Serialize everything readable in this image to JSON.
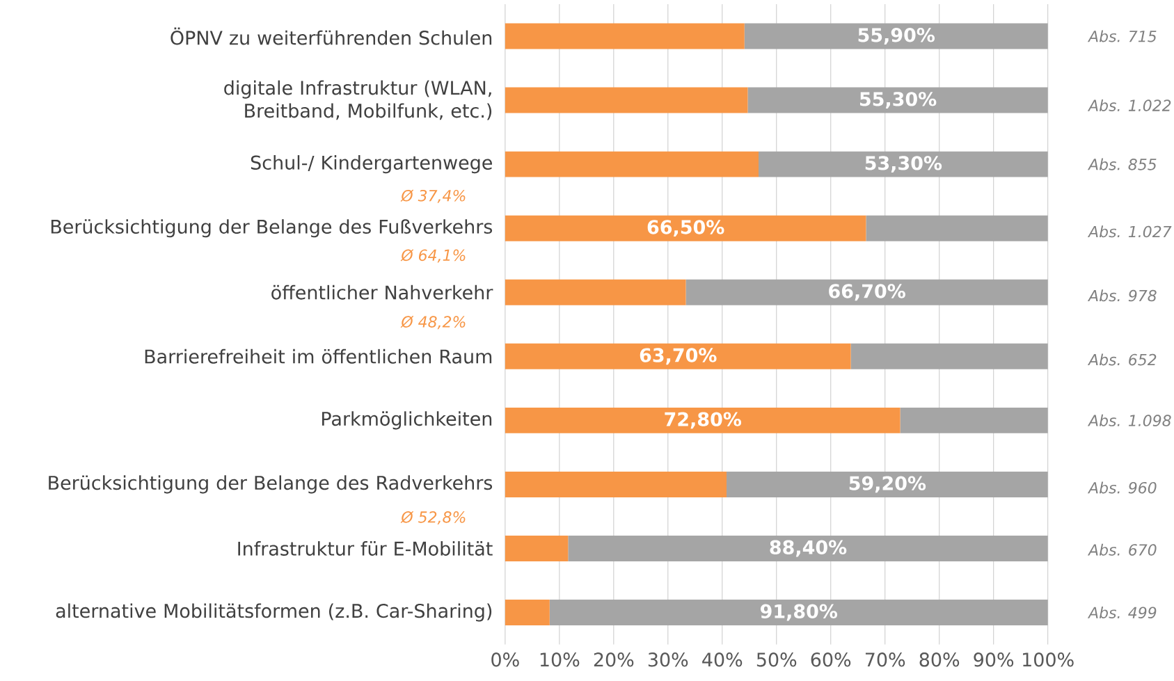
{
  "chart_data": {
    "type": "bar",
    "orientation": "horizontal",
    "stacked": true,
    "categories": [
      "ÖPNV zu weiterführenden Schulen",
      "digitale Infrastruktur (WLAN, Breitband, Mobilfunk, etc.)",
      "Schul-/ Kindergartenwege",
      "Berücksichtigung der Belange des Fußverkehrs",
      "öffentlicher Nahverkehr",
      "Barrierefreiheit im öffentlichen Raum",
      "Parkmöglichkeiten",
      "Berücksichtigung der Belange des Radverkehrs",
      "Infrastruktur für E-Mobilität",
      "alternative Mobilitätsformen (z.B. Car-Sharing)"
    ],
    "series": [
      {
        "color": "#f79646",
        "values": [
          44.1,
          44.7,
          46.7,
          66.5,
          33.3,
          63.7,
          72.8,
          40.8,
          11.6,
          8.2
        ],
        "value_labels": [
          null,
          null,
          null,
          "66,50%",
          null,
          "63,70%",
          "72,80%",
          null,
          null,
          null
        ]
      },
      {
        "color": "#a5a5a5",
        "values": [
          55.9,
          55.3,
          53.3,
          33.5,
          66.7,
          36.3,
          27.2,
          59.2,
          88.4,
          91.8
        ],
        "value_labels": [
          "55,90%",
          "55,30%",
          "53,30%",
          null,
          "66,70%",
          null,
          null,
          "59,20%",
          "88,40%",
          "91,80%"
        ]
      }
    ],
    "xlim": [
      0,
      100
    ],
    "xticks": [
      {
        "value": 0,
        "label": "0%"
      },
      {
        "value": 10,
        "label": "10%"
      },
      {
        "value": 20,
        "label": "20%"
      },
      {
        "value": 30,
        "label": "30%"
      },
      {
        "value": 40,
        "label": "40%"
      },
      {
        "value": 50,
        "label": "50%"
      },
      {
        "value": 60,
        "label": "60%"
      },
      {
        "value": 70,
        "label": "70%"
      },
      {
        "value": 80,
        "label": "80%"
      },
      {
        "value": 90,
        "label": "90%"
      },
      {
        "value": 100,
        "label": "100%"
      }
    ],
    "grid": "x",
    "annotations": [
      "Abs. 715",
      "Abs. 1.022",
      "Abs. 855",
      "Ø 37,4%",
      "Abs. 1.027",
      "Ø 64,1%",
      "Abs. 978",
      "Ø 48,2%",
      "Abs. 652",
      "Abs. 1.098",
      "Abs. 960",
      "Ø 52,8%",
      "Abs. 670",
      "Abs. 499"
    ]
  }
}
